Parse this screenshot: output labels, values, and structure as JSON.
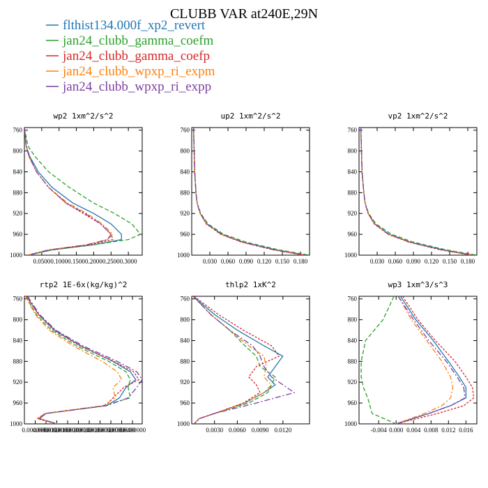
{
  "figure": {
    "title": "CLUBB VAR at240E,29N"
  },
  "legend": [
    {
      "name": "flthist134.000f_xp2_revert",
      "color": "#1f77b4"
    },
    {
      "name": "jan24_clubb_gamma_coefm",
      "color": "#2ca02c"
    },
    {
      "name": "jan24_clubb_gamma_coefp",
      "color": "#d62728"
    },
    {
      "name": "jan24_clubb_wpxp_ri_expm",
      "color": "#ff7f0e"
    },
    {
      "name": "jan24_clubb_wpxp_ri_expp",
      "color": "#7b3f9e"
    }
  ],
  "chart_data": [
    {
      "type": "line",
      "title": "wp2  1xm^2/s^2",
      "xlim": [
        0,
        0.34
      ],
      "ylim": [
        1000,
        755
      ],
      "xticks": [
        0.05,
        0.1,
        0.15,
        0.2,
        0.25,
        0.3
      ],
      "xtick_labels": [
        "0.0500",
        "0.1000",
        "0.1500",
        "0.2000",
        "0.2500",
        "0.3000"
      ],
      "yticks": [
        760,
        800,
        840,
        880,
        920,
        960,
        1000
      ],
      "y": [
        755,
        790,
        810,
        840,
        870,
        900,
        920,
        940,
        960,
        970,
        980,
        990,
        1000
      ],
      "series": [
        {
          "name": "flthist134.000f_xp2_revert",
          "values": [
            0.0,
            0.005,
            0.015,
            0.04,
            0.08,
            0.14,
            0.2,
            0.25,
            0.28,
            0.28,
            0.2,
            0.08,
            0.01
          ]
        },
        {
          "name": "jan24_clubb_gamma_coefm",
          "values": [
            0.0,
            0.01,
            0.03,
            0.07,
            0.13,
            0.2,
            0.26,
            0.31,
            0.335,
            0.3,
            0.2,
            0.08,
            0.01
          ]
        },
        {
          "name": "jan24_clubb_gamma_coefp",
          "values": [
            0.0,
            0.005,
            0.013,
            0.035,
            0.07,
            0.12,
            0.17,
            0.22,
            0.25,
            0.255,
            0.19,
            0.07,
            0.01
          ]
        },
        {
          "name": "jan24_clubb_wpxp_ri_expm",
          "values": [
            0.0,
            0.005,
            0.013,
            0.035,
            0.07,
            0.125,
            0.18,
            0.225,
            0.255,
            0.24,
            0.18,
            0.07,
            0.01
          ]
        },
        {
          "name": "jan24_clubb_wpxp_ri_expp",
          "values": [
            0.0,
            0.005,
            0.013,
            0.035,
            0.07,
            0.12,
            0.175,
            0.22,
            0.25,
            0.24,
            0.18,
            0.07,
            0.01
          ]
        }
      ]
    },
    {
      "type": "line",
      "title": "up2  1xm^2/s^2",
      "xlim": [
        0,
        0.195
      ],
      "ylim": [
        1000,
        755
      ],
      "xticks": [
        0.03,
        0.06,
        0.09,
        0.12,
        0.15,
        0.18
      ],
      "xtick_labels": [
        "0.030",
        "0.060",
        "0.090",
        "0.120",
        "0.150",
        "0.180"
      ],
      "yticks": [
        760,
        800,
        840,
        880,
        920,
        960,
        1000
      ],
      "y": [
        755,
        800,
        840,
        880,
        900,
        920,
        940,
        960,
        975,
        990,
        1000
      ],
      "series": [
        {
          "name": "flthist134.000f_xp2_revert",
          "values": [
            0.003,
            0.004,
            0.005,
            0.007,
            0.009,
            0.014,
            0.025,
            0.05,
            0.085,
            0.14,
            0.19
          ]
        },
        {
          "name": "jan24_clubb_gamma_coefm",
          "values": [
            0.003,
            0.004,
            0.005,
            0.007,
            0.009,
            0.015,
            0.027,
            0.053,
            0.09,
            0.145,
            0.195
          ]
        },
        {
          "name": "jan24_clubb_gamma_coefp",
          "values": [
            0.003,
            0.004,
            0.005,
            0.007,
            0.009,
            0.014,
            0.024,
            0.048,
            0.082,
            0.135,
            0.185
          ]
        },
        {
          "name": "jan24_clubb_wpxp_ri_expm",
          "values": [
            0.003,
            0.004,
            0.005,
            0.007,
            0.009,
            0.014,
            0.025,
            0.049,
            0.084,
            0.138,
            0.188
          ]
        },
        {
          "name": "jan24_clubb_wpxp_ri_expp",
          "values": [
            0.003,
            0.004,
            0.005,
            0.007,
            0.009,
            0.014,
            0.025,
            0.049,
            0.084,
            0.138,
            0.188
          ]
        }
      ]
    },
    {
      "type": "line",
      "title": "vp2  1xm^2/s^2",
      "xlim": [
        0,
        0.195
      ],
      "ylim": [
        1000,
        755
      ],
      "xticks": [
        0.03,
        0.06,
        0.09,
        0.12,
        0.15,
        0.18
      ],
      "xtick_labels": [
        "0.030",
        "0.060",
        "0.090",
        "0.120",
        "0.150",
        "0.180"
      ],
      "yticks": [
        760,
        800,
        840,
        880,
        920,
        960,
        1000
      ],
      "y": [
        755,
        800,
        840,
        880,
        900,
        920,
        940,
        960,
        975,
        990,
        1000
      ],
      "series": [
        {
          "name": "flthist134.000f_xp2_revert",
          "values": [
            0.003,
            0.004,
            0.005,
            0.008,
            0.01,
            0.015,
            0.026,
            0.05,
            0.085,
            0.14,
            0.19
          ]
        },
        {
          "name": "jan24_clubb_gamma_coefm",
          "values": [
            0.003,
            0.004,
            0.005,
            0.008,
            0.01,
            0.016,
            0.028,
            0.054,
            0.09,
            0.145,
            0.195
          ]
        },
        {
          "name": "jan24_clubb_gamma_coefp",
          "values": [
            0.003,
            0.004,
            0.005,
            0.008,
            0.01,
            0.015,
            0.025,
            0.048,
            0.082,
            0.135,
            0.185
          ]
        },
        {
          "name": "jan24_clubb_wpxp_ri_expm",
          "values": [
            0.003,
            0.004,
            0.005,
            0.008,
            0.01,
            0.015,
            0.026,
            0.049,
            0.084,
            0.138,
            0.188
          ]
        },
        {
          "name": "jan24_clubb_wpxp_ri_expp",
          "values": [
            0.003,
            0.004,
            0.005,
            0.008,
            0.01,
            0.015,
            0.026,
            0.049,
            0.084,
            0.138,
            0.188
          ]
        }
      ]
    },
    {
      "type": "line",
      "title": "rtp2  1E-6x(kg/kg)^2",
      "xlim": [
        0,
        1.09e-05
      ],
      "ylim": [
        1000,
        755
      ],
      "xticks": [
        1e-06,
        2e-06,
        3e-06,
        4e-06,
        5e-06,
        6e-06,
        7e-06,
        8e-06,
        9e-06,
        1e-05
      ],
      "xtick_labels": [
        "0.0040000",
        "0.0080000",
        "0.0120000",
        "0.0160000",
        "0.0200000",
        "0.0240000",
        "0.0280000",
        "0.0320000",
        "0.0360000",
        "0.0400000"
      ],
      "yticks": [
        760,
        800,
        840,
        880,
        920,
        960,
        1000
      ],
      "y": [
        755,
        790,
        820,
        850,
        880,
        900,
        915,
        930,
        950,
        965,
        980,
        990,
        1000
      ],
      "series": [
        {
          "name": "flthist134.000f_xp2_revert",
          "values": [
            2e-07,
            1.3e-06,
            2.8e-06,
            5.2e-06,
            8.2e-06,
            9.8e-06,
            1.03e-05,
            9.4e-06,
            8.8e-06,
            7.6e-06,
            2e-06,
            1.4e-06,
            3e-06
          ]
        },
        {
          "name": "jan24_clubb_gamma_coefm",
          "values": [
            1e-07,
            1.1e-06,
            2.5e-06,
            4.8e-06,
            7.8e-06,
            9.4e-06,
            9.8e-06,
            9.6e-06,
            9.8e-06,
            7.3e-06,
            1.9e-06,
            1.3e-06,
            3.1e-06
          ]
        },
        {
          "name": "jan24_clubb_gamma_coefp",
          "values": [
            2e-07,
            1.3e-06,
            2.7e-06,
            5.1e-06,
            8.3e-06,
            1.01e-05,
            1.06e-05,
            9.2e-06,
            8.2e-06,
            7.5e-06,
            1.9e-06,
            1.2e-06,
            3e-06
          ]
        },
        {
          "name": "jan24_clubb_wpxp_ri_expm",
          "values": [
            1e-07,
            1e-06,
            2.3e-06,
            4.5e-06,
            7.2e-06,
            8.6e-06,
            9e-06,
            8.2e-06,
            8.4e-06,
            7.3e-06,
            1.9e-06,
            1.3e-06,
            3e-06
          ]
        },
        {
          "name": "jan24_clubb_wpxp_ri_expp",
          "values": [
            3e-07,
            1.4e-06,
            2.9e-06,
            5.4e-06,
            8.6e-06,
            1.04e-05,
            1.09e-05,
            1.04e-05,
            9.6e-06,
            7.6e-06,
            2e-06,
            1.4e-06,
            3e-06
          ]
        }
      ]
    },
    {
      "type": "line",
      "title": "thlp2  1xK^2",
      "xlim": [
        0,
        0.0155
      ],
      "ylim": [
        1000,
        755
      ],
      "xticks": [
        0.003,
        0.006,
        0.009,
        0.012
      ],
      "xtick_labels": [
        "0.0030",
        "0.0060",
        "0.0090",
        "0.0120"
      ],
      "yticks": [
        760,
        800,
        840,
        880,
        920,
        960,
        1000
      ],
      "y": [
        755,
        790,
        820,
        850,
        870,
        890,
        910,
        925,
        940,
        960,
        980,
        990,
        1000
      ],
      "series": [
        {
          "name": "flthist134.000f_xp2_revert",
          "values": [
            0.0002,
            0.003,
            0.006,
            0.0095,
            0.012,
            0.011,
            0.01,
            0.011,
            0.0095,
            0.007,
            0.003,
            0.001,
            0.0003
          ]
        },
        {
          "name": "jan24_clubb_gamma_coefm",
          "values": [
            0.0002,
            0.0025,
            0.005,
            0.007,
            0.0085,
            0.009,
            0.011,
            0.0105,
            0.01,
            0.0075,
            0.003,
            0.001,
            0.0003
          ]
        },
        {
          "name": "jan24_clubb_gamma_coefp",
          "values": [
            0.0003,
            0.0035,
            0.0068,
            0.0105,
            0.0115,
            0.0085,
            0.0075,
            0.0085,
            0.009,
            0.0068,
            0.003,
            0.001,
            0.0003
          ]
        },
        {
          "name": "jan24_clubb_wpxp_ri_expm",
          "values": [
            0.0002,
            0.0025,
            0.005,
            0.0075,
            0.0095,
            0.0098,
            0.0095,
            0.0105,
            0.0095,
            0.007,
            0.003,
            0.001,
            0.0003
          ]
        },
        {
          "name": "jan24_clubb_wpxp_ri_expp",
          "values": [
            0.0002,
            0.0025,
            0.005,
            0.008,
            0.009,
            0.0095,
            0.0105,
            0.012,
            0.0135,
            0.0085,
            0.003,
            0.001,
            0.0003
          ]
        }
      ]
    },
    {
      "type": "line",
      "title": "wp3  1xm^3/s^3",
      "xlim": [
        -0.0085,
        0.0185
      ],
      "ylim": [
        1000,
        755
      ],
      "xticks": [
        -0.004,
        0.0,
        0.004,
        0.008,
        0.012,
        0.016
      ],
      "xtick_labels": [
        "-0.004",
        "0.000",
        "0.004",
        "0.008",
        "0.012",
        "0.016"
      ],
      "yticks": [
        760,
        800,
        840,
        880,
        920,
        960,
        1000
      ],
      "y": [
        755,
        800,
        840,
        880,
        910,
        930,
        950,
        965,
        980,
        1000
      ],
      "series": [
        {
          "name": "flthist134.000f_xp2_revert",
          "values": [
            0.001,
            0.0045,
            0.0085,
            0.012,
            0.0145,
            0.016,
            0.016,
            0.0125,
            0.0075,
            0.0
          ]
        },
        {
          "name": "jan24_clubb_gamma_coefm",
          "values": [
            -0.0005,
            -0.003,
            -0.007,
            -0.008,
            -0.008,
            -0.0075,
            -0.0065,
            -0.006,
            -0.0055,
            0.0
          ]
        },
        {
          "name": "jan24_clubb_gamma_coefp",
          "values": [
            0.0015,
            0.005,
            0.009,
            0.0135,
            0.016,
            0.0175,
            0.0178,
            0.0155,
            0.0095,
            0.0
          ]
        },
        {
          "name": "jan24_clubb_wpxp_ri_expm",
          "values": [
            0.0005,
            0.0035,
            0.007,
            0.0105,
            0.0125,
            0.013,
            0.0125,
            0.0105,
            0.0065,
            0.0
          ]
        },
        {
          "name": "jan24_clubb_wpxp_ri_expp",
          "values": [
            0.0005,
            0.004,
            0.0075,
            0.0115,
            0.014,
            0.0155,
            0.0158,
            0.0125,
            0.0075,
            0.0
          ]
        }
      ]
    }
  ]
}
